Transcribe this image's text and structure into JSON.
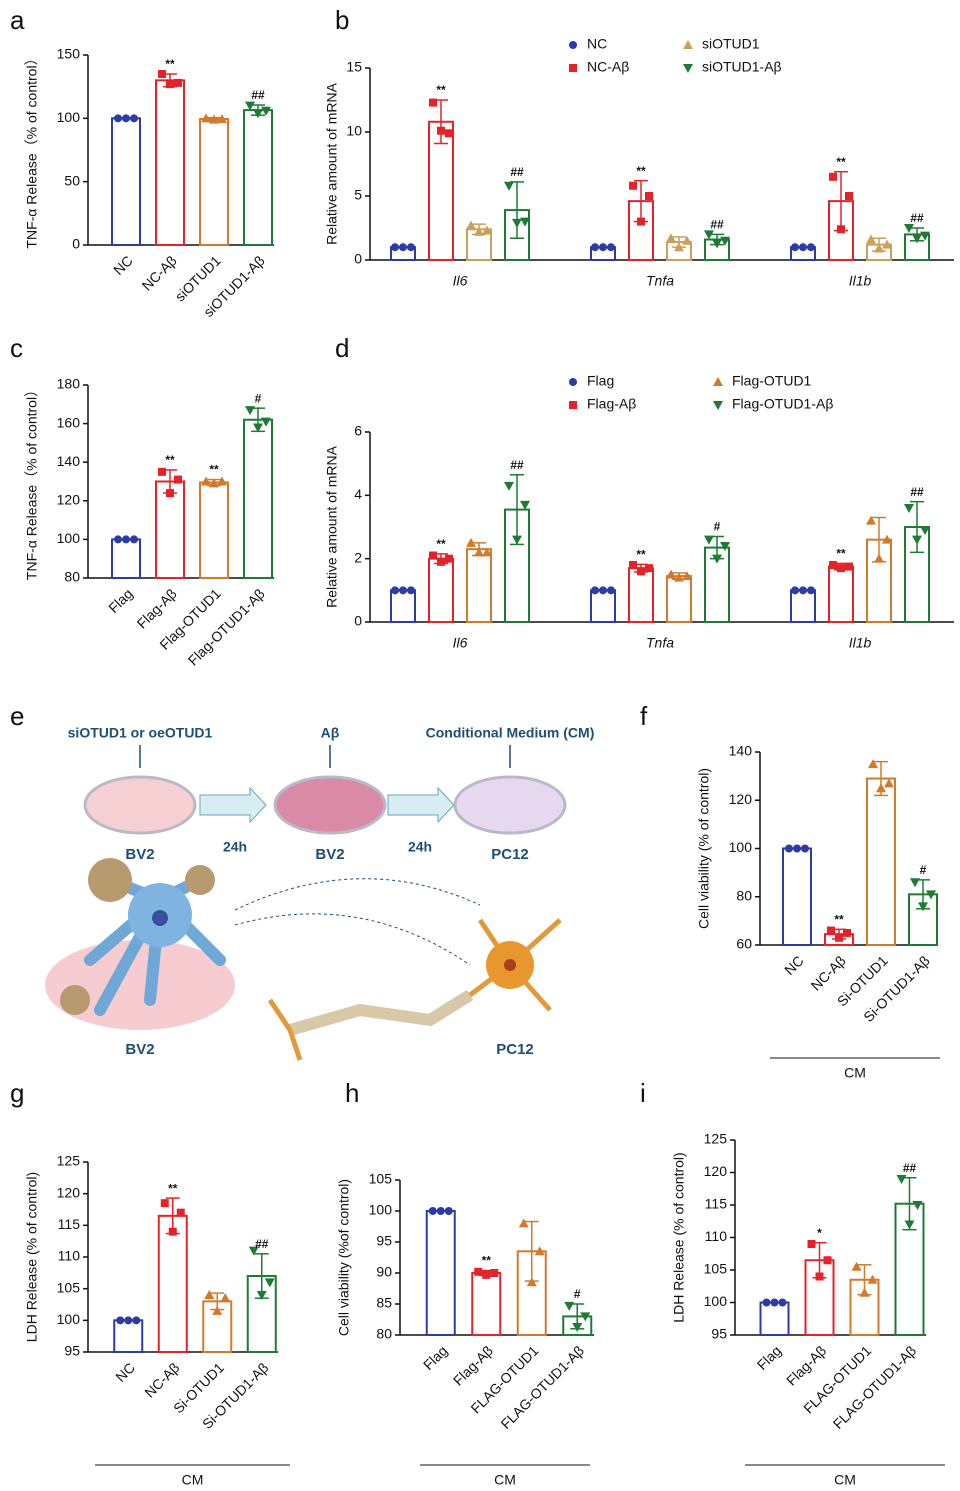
{
  "chart_data": [
    {
      "label": "a",
      "type": "bar",
      "ylabel": "TNF-α Release（% of control）",
      "categories": [
        "NC",
        "NC-Aβ",
        "siOTUD1",
        "siOTUD1-Aβ"
      ],
      "values": [
        100,
        130,
        99.5,
        106.5
      ],
      "errors": [
        0,
        5,
        1,
        4
      ],
      "points": [
        [
          100,
          100,
          100
        ],
        [
          135,
          127,
          128
        ],
        [
          100,
          99,
          99.5
        ],
        [
          110,
          104,
          106
        ]
      ],
      "annotations": [
        null,
        "**",
        null,
        "##"
      ],
      "colors": [
        "#2e3aa6",
        "#e4222a",
        "#d27a2c",
        "#1e7a34"
      ],
      "ylim": [
        0,
        150
      ],
      "yticks": [
        0,
        50,
        100,
        150
      ]
    },
    {
      "label": "b",
      "type": "grouped-bar",
      "ylabel": "Relative amount of mRNA",
      "legend": "top-right",
      "categories": [
        "Il6",
        "Tnfa",
        "Il1b"
      ],
      "series": [
        {
          "name": "NC",
          "color": "#2e3aa6",
          "values": [
            1,
            1,
            1
          ],
          "errors": [
            0,
            0,
            0
          ],
          "points": [
            [
              1,
              1,
              1
            ],
            [
              1,
              1,
              1
            ],
            [
              1,
              1,
              1
            ]
          ],
          "annotations": [
            null,
            null,
            null
          ]
        },
        {
          "name": "NC-Aβ",
          "color": "#e4222a",
          "values": [
            10.8,
            4.6,
            4.6
          ],
          "errors": [
            1.7,
            1.6,
            2.3
          ],
          "points": [
            [
              12.3,
              10.1,
              9.9
            ],
            [
              5.8,
              3.0,
              5.0
            ],
            [
              6.5,
              2.4,
              5.0
            ]
          ],
          "annotations": [
            "**",
            "**",
            "**"
          ]
        },
        {
          "name": "siOTUD1",
          "color": "#c9a15a",
          "values": [
            2.4,
            1.4,
            1.2
          ],
          "errors": [
            0.4,
            0.4,
            0.5
          ],
          "points": [
            [
              2.7,
              2.2,
              2.3
            ],
            [
              1.7,
              1.0,
              1.5
            ],
            [
              1.6,
              0.9,
              1.2
            ]
          ],
          "annotations": [
            null,
            null,
            null
          ]
        },
        {
          "name": "siOTUD1-Aβ",
          "color": "#1e7a34",
          "values": [
            3.9,
            1.6,
            2.0
          ],
          "errors": [
            2.2,
            0.4,
            0.5
          ],
          "points": [
            [
              5.8,
              2.9,
              3.0
            ],
            [
              2.0,
              1.3,
              1.5
            ],
            [
              2.5,
              1.7,
              1.9
            ]
          ],
          "annotations": [
            "##",
            "##",
            "##"
          ]
        }
      ],
      "ylim": [
        0,
        15
      ],
      "yticks": [
        0,
        5,
        10,
        15
      ]
    },
    {
      "label": "c",
      "type": "bar",
      "ylabel": "TNF-α Release（% of control）",
      "categories": [
        "Flag",
        "Flag-Aβ",
        "Flag-OTUD1",
        "Flag-OTUD1-Aβ"
      ],
      "values": [
        100,
        130,
        129.5,
        162
      ],
      "errors": [
        0,
        6,
        1.5,
        6
      ],
      "points": [
        [
          100,
          100,
          100
        ],
        [
          135,
          124,
          131
        ],
        [
          130,
          129,
          130
        ],
        [
          167,
          158,
          161
        ]
      ],
      "annotations": [
        null,
        "**",
        "**",
        "#"
      ],
      "colors": [
        "#2e3aa6",
        "#e4222a",
        "#d27a2c",
        "#1e7a34"
      ],
      "ylim": [
        80,
        180
      ],
      "yticks": [
        80,
        100,
        120,
        140,
        160,
        180
      ]
    },
    {
      "label": "d",
      "type": "grouped-bar",
      "ylabel": "Relative amount of mRNA",
      "legend": "top-right",
      "categories": [
        "Il6",
        "Tnfa",
        "Il1b"
      ],
      "series": [
        {
          "name": "Flag",
          "color": "#2e3aa6",
          "values": [
            1,
            1,
            1
          ],
          "errors": [
            0,
            0,
            0
          ],
          "points": [
            [
              1,
              1,
              1
            ],
            [
              1,
              1,
              1
            ],
            [
              1,
              1,
              1
            ]
          ],
          "annotations": [
            null,
            null,
            null
          ]
        },
        {
          "name": "Flag-Aβ",
          "color": "#e4222a",
          "values": [
            2.0,
            1.7,
            1.75
          ],
          "errors": [
            0.15,
            0.12,
            0.1
          ],
          "points": [
            [
              2.1,
              1.9,
              2.0
            ],
            [
              1.8,
              1.6,
              1.7
            ],
            [
              1.8,
              1.7,
              1.75
            ]
          ],
          "annotations": [
            "**",
            "**",
            "**"
          ]
        },
        {
          "name": "Flag-OTUD1",
          "color": "#d27a2c",
          "values": [
            2.3,
            1.45,
            2.6
          ],
          "errors": [
            0.2,
            0.1,
            0.7
          ],
          "points": [
            [
              2.5,
              2.2,
              2.2
            ],
            [
              1.5,
              1.4,
              1.45
            ],
            [
              3.2,
              2.0,
              2.6
            ]
          ],
          "annotations": [
            null,
            null,
            null
          ]
        },
        {
          "name": "Flag-OTUD1-Aβ",
          "color": "#1e7a34",
          "values": [
            3.55,
            2.35,
            3.0
          ],
          "errors": [
            1.1,
            0.35,
            0.8
          ],
          "points": [
            [
              4.3,
              2.6,
              3.7
            ],
            [
              2.6,
              2.0,
              2.4
            ],
            [
              3.6,
              2.6,
              2.9
            ]
          ],
          "annotations": [
            "##",
            "#",
            "##"
          ]
        }
      ],
      "ylim": [
        0,
        6
      ],
      "yticks": [
        0,
        2,
        4,
        6
      ]
    },
    {
      "label": "f",
      "type": "bar",
      "ylabel": "Cell viability (% of control)",
      "group_label": "CM",
      "categories": [
        "NC",
        "NC-Aβ",
        "Si-OTUD1",
        "Si-OTUD1-Aβ"
      ],
      "values": [
        100,
        64.5,
        129,
        81
      ],
      "errors": [
        0,
        2,
        7,
        6
      ],
      "points": [
        [
          100,
          100,
          100
        ],
        [
          66,
          63,
          65
        ],
        [
          135,
          125,
          127
        ],
        [
          86,
          76,
          81
        ]
      ],
      "annotations": [
        null,
        "**",
        null,
        "#"
      ],
      "colors": [
        "#2e3aa6",
        "#e4222a",
        "#d27a2c",
        "#1e7a34"
      ],
      "ylim": [
        60,
        140
      ],
      "yticks": [
        60,
        80,
        100,
        120,
        140
      ]
    },
    {
      "label": "g",
      "type": "bar",
      "ylabel": "LDH Release (% of control)",
      "group_label": "CM",
      "categories": [
        "NC",
        "NC-Aβ",
        "Si-OTUD1",
        "Si-OTUD1-Aβ"
      ],
      "values": [
        100,
        116.5,
        103,
        107
      ],
      "errors": [
        0,
        2.8,
        1.3,
        3.5
      ],
      "points": [
        [
          100,
          100,
          100
        ],
        [
          118.5,
          114,
          117
        ],
        [
          104,
          101.5,
          103.5
        ],
        [
          111,
          104,
          106
        ]
      ],
      "annotations": [
        null,
        "**",
        null,
        "##"
      ],
      "colors": [
        "#2e3aa6",
        "#e4222a",
        "#d27a2c",
        "#1e7a34"
      ],
      "ylim": [
        95,
        125
      ],
      "yticks": [
        95,
        100,
        105,
        110,
        115,
        120,
        125
      ]
    },
    {
      "label": "h",
      "type": "bar",
      "ylabel": "Cell viability (%of control)",
      "group_label": "CM",
      "categories": [
        "Flag",
        "Flag-Aβ",
        "FLAG-OTUD1",
        "FLAG-OTUD1-Aβ"
      ],
      "values": [
        100,
        90,
        93.5,
        83
      ],
      "errors": [
        0,
        0.4,
        4.8,
        2
      ],
      "points": [
        [
          100,
          100,
          100
        ],
        [
          90.2,
          89.7,
          90
        ],
        [
          98,
          88.5,
          93.5
        ],
        [
          84.7,
          81.3,
          83
        ]
      ],
      "annotations": [
        null,
        "**",
        null,
        "#"
      ],
      "colors": [
        "#2e3aa6",
        "#e4222a",
        "#d27a2c",
        "#1e7a34"
      ],
      "ylim": [
        80,
        105
      ],
      "yticks": [
        80,
        85,
        90,
        95,
        100,
        105
      ]
    },
    {
      "label": "i",
      "type": "bar",
      "ylabel": "LDH Release (% of control)",
      "group_label": "CM",
      "categories": [
        "Flag",
        "Flag-Aβ",
        "FLAG-OTUD1",
        "FLAG-OTUD1-Aβ"
      ],
      "values": [
        100,
        106.5,
        103.5,
        115.2
      ],
      "errors": [
        0,
        2.7,
        2.3,
        4
      ],
      "points": [
        [
          100,
          100,
          100
        ],
        [
          109,
          104,
          106.5
        ],
        [
          105.5,
          101.5,
          103.5
        ],
        [
          119,
          112,
          115
        ]
      ],
      "annotations": [
        null,
        "*",
        null,
        "##"
      ],
      "colors": [
        "#2e3aa6",
        "#e4222a",
        "#d27a2c",
        "#1e7a34"
      ],
      "ylim": [
        95,
        125
      ],
      "yticks": [
        95,
        100,
        105,
        110,
        115,
        120,
        125
      ]
    }
  ],
  "diagram": {
    "label": "e",
    "steps": [
      "siOTUD1 or oeOTUD1",
      "Aβ",
      "Conditional Medium (CM)"
    ],
    "durations": [
      "24h",
      "24h"
    ],
    "dish_labels": [
      "BV2",
      "BV2",
      "PC12"
    ],
    "cell_labels": [
      "BV2",
      "PC12"
    ]
  }
}
